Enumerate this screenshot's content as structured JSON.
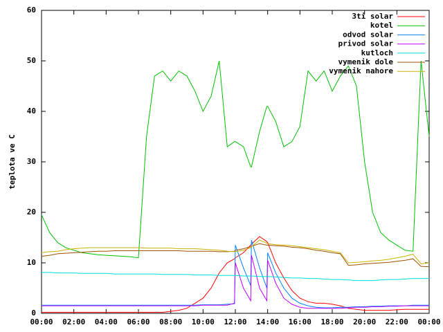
{
  "chart_data": {
    "type": "line",
    "y_label": "teplota ve C",
    "x": [
      0,
      0.5,
      1,
      1.5,
      2,
      2.5,
      3,
      3.5,
      4,
      4.5,
      5,
      5.5,
      6,
      6.5,
      7,
      7.5,
      8,
      8.5,
      9,
      9.5,
      10,
      10.5,
      11,
      11.5,
      11.95,
      12,
      12.5,
      12.95,
      13,
      13.5,
      13.95,
      14,
      14.5,
      15,
      15.5,
      16,
      16.5,
      17,
      17.5,
      18,
      18.5,
      19,
      19.5,
      20,
      20.5,
      21,
      21.5,
      22,
      22.5,
      23,
      23.5,
      24
    ],
    "xlim": [
      0,
      24
    ],
    "xticks": [
      {
        "value": 0,
        "label": "00:00"
      },
      {
        "value": 2,
        "label": "02:00"
      },
      {
        "value": 4,
        "label": "04:00"
      },
      {
        "value": 6,
        "label": "06:00"
      },
      {
        "value": 8,
        "label": "08:00"
      },
      {
        "value": 10,
        "label": "10:00"
      },
      {
        "value": 12,
        "label": "12:00"
      },
      {
        "value": 14,
        "label": "14:00"
      },
      {
        "value": 16,
        "label": "16:00"
      },
      {
        "value": 18,
        "label": "18:00"
      },
      {
        "value": 20,
        "label": "20:00"
      },
      {
        "value": 22,
        "label": "22:00"
      },
      {
        "value": 24,
        "label": "00:00"
      }
    ],
    "ylim": [
      0,
      60
    ],
    "yticks": [
      0,
      10,
      20,
      30,
      40,
      50,
      60
    ],
    "legend": "upper right",
    "series": [
      {
        "name": "3ti solar",
        "color": "#ff0000",
        "values": [
          0.2,
          0.2,
          0.2,
          0.2,
          0.2,
          0.2,
          0.2,
          0.2,
          0.2,
          0.2,
          0.2,
          0.2,
          0.2,
          0.2,
          0.2,
          0.2,
          0.4,
          0.6,
          1,
          2,
          3,
          5,
          8,
          10,
          10.8,
          11,
          12,
          13.5,
          13.7,
          15.2,
          14.2,
          14,
          10,
          7,
          4.5,
          3,
          2.3,
          2,
          2,
          1.8,
          1.5,
          1,
          0.8,
          0.6,
          0.6,
          0.6,
          0.6,
          0.7,
          0.8,
          0.8,
          0.8,
          0.8
        ]
      },
      {
        "name": "kotel",
        "color": "#00c000",
        "values": [
          19.5,
          16,
          14,
          13,
          12.5,
          12,
          11.8,
          11.6,
          11.5,
          11.4,
          11.3,
          11.2,
          11,
          35,
          47,
          48,
          46,
          48,
          47,
          44,
          40,
          43,
          50,
          33,
          34,
          34,
          33,
          29,
          29,
          36,
          41,
          41,
          38,
          33,
          34,
          37,
          48,
          46,
          48,
          44,
          47,
          49,
          45,
          30,
          20,
          16,
          14.5,
          13.5,
          12.5,
          12.3,
          50,
          35
        ]
      },
      {
        "name": "odvod solar",
        "color": "#0080ff",
        "values": [
          1.6,
          1.6,
          1.6,
          1.6,
          1.6,
          1.6,
          1.6,
          1.6,
          1.6,
          1.6,
          1.6,
          1.6,
          1.6,
          1.6,
          1.6,
          1.6,
          1.6,
          1.6,
          1.6,
          1.6,
          1.7,
          1.7,
          1.7,
          1.8,
          1.9,
          13.5,
          9,
          5.5,
          14.5,
          9,
          5,
          12,
          8,
          5,
          3,
          2,
          1.5,
          1.2,
          1.1,
          1.1,
          1.2,
          1.2,
          1.3,
          1.3,
          1.4,
          1.4,
          1.5,
          1.5,
          1.5,
          1.6,
          1.6,
          1.6
        ]
      },
      {
        "name": "privod solar",
        "color": "#c000ff",
        "values": [
          1.5,
          1.5,
          1.5,
          1.5,
          1.5,
          1.5,
          1.5,
          1.5,
          1.5,
          1.5,
          1.5,
          1.5,
          1.5,
          1.5,
          1.5,
          1.5,
          1.5,
          1.5,
          1.5,
          1.5,
          1.6,
          1.6,
          1.6,
          1.6,
          2,
          10,
          5,
          2.5,
          11.5,
          5,
          2.5,
          10.5,
          6,
          3,
          1.8,
          1.2,
          1,
          1,
          1,
          1,
          1,
          1.1,
          1.2,
          1.2,
          1.3,
          1.3,
          1.4,
          1.4,
          1.5,
          1.5,
          1.5,
          1.5
        ]
      },
      {
        "name": "kutloch",
        "color": "#00dddd",
        "values": [
          8.1,
          8.1,
          8,
          8,
          8,
          7.9,
          7.9,
          7.9,
          7.9,
          7.8,
          7.8,
          7.8,
          7.8,
          7.8,
          7.8,
          7.7,
          7.7,
          7.7,
          7.7,
          7.6,
          7.6,
          7.6,
          7.5,
          7.5,
          7.5,
          7.5,
          7.4,
          7.4,
          7.4,
          7.3,
          7.3,
          7.3,
          7.2,
          7.1,
          7,
          7,
          6.9,
          6.9,
          6.8,
          6.7,
          6.7,
          6.6,
          6.5,
          6.5,
          6.5,
          6.6,
          6.7,
          6.7,
          6.8,
          6.9,
          6.9,
          6.9
        ]
      },
      {
        "name": "vymenik dole",
        "color": "#a05000",
        "values": [
          11.3,
          11.5,
          11.8,
          11.9,
          12,
          12.1,
          12.2,
          12.3,
          12.3,
          12.4,
          12.4,
          12.4,
          12.4,
          12.4,
          12.4,
          12.4,
          12.4,
          12.4,
          12.3,
          12.3,
          12.3,
          12.3,
          12.2,
          12.2,
          12.3,
          12.5,
          12.8,
          13.2,
          13.3,
          13.8,
          13.5,
          13.5,
          13.4,
          13.3,
          13.1,
          13,
          12.8,
          12.5,
          12.3,
          12,
          11.8,
          9.5,
          9.6,
          9.8,
          9.9,
          10,
          10.1,
          10.3,
          10.5,
          10.8,
          9.3,
          9.2
        ]
      },
      {
        "name": "vymenik nahore",
        "color": "#c8b400",
        "values": [
          12,
          12.2,
          12.3,
          12.6,
          12.8,
          12.9,
          13,
          13,
          13,
          13,
          13,
          13,
          13,
          12.9,
          12.9,
          12.9,
          12.9,
          12.8,
          12.8,
          12.8,
          12.7,
          12.6,
          12.5,
          12.3,
          12.2,
          12.2,
          12.5,
          13,
          13.2,
          14.5,
          13.9,
          13.8,
          13.6,
          13.5,
          13.4,
          13.2,
          13,
          12.8,
          12.6,
          12.3,
          12,
          10,
          10.1,
          10.2,
          10.4,
          10.5,
          10.7,
          11,
          11.3,
          11.7,
          9.8,
          10
        ]
      }
    ]
  }
}
